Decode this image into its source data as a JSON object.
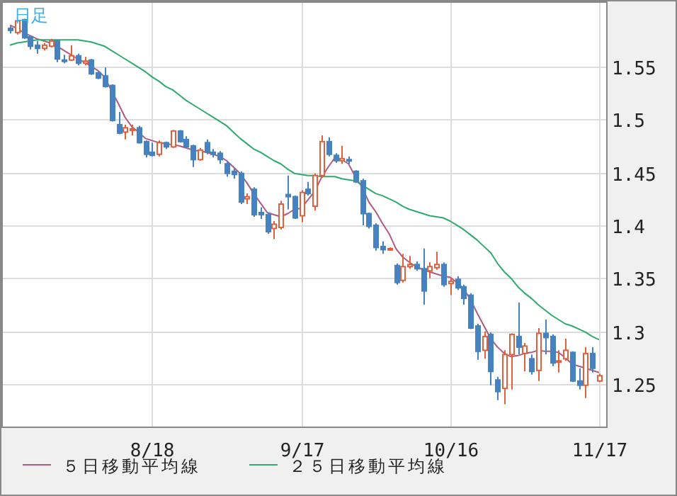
{
  "chart_data": {
    "type": "candlestick",
    "annotations": [
      "日足"
    ],
    "categories": [
      null,
      null,
      null,
      null,
      null,
      null,
      null,
      null,
      null,
      null,
      null,
      null,
      null,
      null,
      null,
      null,
      null,
      null,
      null,
      null,
      null,
      "8/18",
      null,
      null,
      null,
      null,
      null,
      null,
      null,
      null,
      null,
      null,
      null,
      null,
      null,
      null,
      null,
      null,
      null,
      null,
      null,
      null,
      null,
      "9/17",
      null,
      null,
      null,
      null,
      null,
      null,
      null,
      null,
      null,
      null,
      null,
      null,
      null,
      null,
      null,
      null,
      null,
      null,
      null,
      null,
      null,
      "10/16",
      null,
      null,
      null,
      null,
      null,
      null,
      null,
      null,
      null,
      null,
      null,
      null,
      null,
      null,
      null,
      null,
      null,
      null,
      null,
      null,
      null,
      "11/17"
    ],
    "ohlc": [
      [
        1.586,
        1.588,
        1.581,
        1.584
      ],
      [
        1.582,
        1.594,
        1.58,
        1.593
      ],
      [
        1.594,
        1.595,
        1.576,
        1.577
      ],
      [
        1.578,
        1.579,
        1.566,
        1.569
      ],
      [
        1.57,
        1.574,
        1.562,
        1.567
      ],
      [
        1.567,
        1.572,
        1.565,
        1.57
      ],
      [
        1.569,
        1.576,
        1.568,
        1.574
      ],
      [
        1.574,
        1.575,
        1.554,
        1.557
      ],
      [
        1.556,
        1.561,
        1.553,
        1.555
      ],
      [
        1.556,
        1.57,
        1.555,
        1.56
      ],
      [
        1.56,
        1.562,
        1.551,
        1.553
      ],
      [
        1.553,
        1.559,
        1.551,
        1.555
      ],
      [
        1.556,
        1.557,
        1.542,
        1.543
      ],
      [
        1.544,
        1.545,
        1.538,
        1.539
      ],
      [
        1.541,
        1.549,
        1.53,
        1.531
      ],
      [
        1.532,
        1.533,
        1.498,
        1.499
      ],
      [
        1.495,
        1.507,
        1.486,
        1.487
      ],
      [
        1.488,
        1.495,
        1.481,
        1.492
      ],
      [
        1.49,
        1.495,
        1.485,
        1.491
      ],
      [
        1.492,
        1.494,
        1.477,
        1.478
      ],
      [
        1.479,
        1.48,
        1.464,
        1.467
      ],
      [
        1.469,
        1.478,
        1.465,
        1.466
      ],
      [
        1.467,
        1.48,
        1.465,
        1.478
      ],
      [
        1.478,
        1.479,
        1.472,
        1.474
      ],
      [
        1.474,
        1.49,
        1.473,
        1.489
      ],
      [
        1.489,
        1.49,
        1.478,
        1.479
      ],
      [
        1.481,
        1.484,
        1.473,
        1.474
      ],
      [
        1.475,
        1.476,
        1.455,
        1.462
      ],
      [
        1.462,
        1.473,
        1.461,
        1.471
      ],
      [
        1.478,
        1.481,
        1.467,
        1.469
      ],
      [
        1.469,
        1.472,
        1.464,
        1.467
      ],
      [
        1.468,
        1.47,
        1.458,
        1.462
      ],
      [
        1.458,
        1.46,
        1.446,
        1.449
      ],
      [
        1.451,
        1.454,
        1.444,
        1.448
      ],
      [
        1.449,
        1.451,
        1.42,
        1.422
      ],
      [
        1.425,
        1.43,
        1.42,
        1.427
      ],
      [
        1.434,
        1.436,
        1.408,
        1.41
      ],
      [
        1.412,
        1.417,
        1.406,
        1.41
      ],
      [
        1.41,
        1.412,
        1.392,
        1.394
      ],
      [
        1.397,
        1.404,
        1.387,
        1.401
      ],
      [
        1.398,
        1.423,
        1.396,
        1.42
      ],
      [
        1.429,
        1.447,
        1.415,
        1.427
      ],
      [
        1.427,
        1.428,
        1.406,
        1.407
      ],
      [
        1.409,
        1.433,
        1.403,
        1.431
      ],
      [
        1.434,
        1.441,
        1.428,
        1.43
      ],
      [
        1.418,
        1.449,
        1.414,
        1.447
      ],
      [
        1.447,
        1.485,
        1.445,
        1.479
      ],
      [
        1.479,
        1.483,
        1.465,
        1.467
      ],
      [
        1.466,
        1.468,
        1.459,
        1.461
      ],
      [
        1.461,
        1.475,
        1.458,
        1.463
      ],
      [
        1.462,
        1.465,
        1.458,
        1.461
      ],
      [
        1.451,
        1.452,
        1.44,
        1.441
      ],
      [
        1.442,
        1.444,
        1.4,
        1.411
      ],
      [
        1.411,
        1.412,
        1.397,
        1.399
      ],
      [
        1.4,
        1.402,
        1.376,
        1.379
      ],
      [
        1.38,
        1.385,
        1.373,
        1.377
      ],
      [
        1.377,
        1.379,
        1.376,
        1.378
      ],
      [
        1.362,
        1.364,
        1.344,
        1.346
      ],
      [
        1.348,
        1.373,
        1.346,
        1.361
      ],
      [
        1.361,
        1.371,
        1.359,
        1.363
      ],
      [
        1.363,
        1.366,
        1.357,
        1.359
      ],
      [
        1.359,
        1.378,
        1.325,
        1.338
      ],
      [
        1.357,
        1.365,
        1.35,
        1.361
      ],
      [
        1.36,
        1.375,
        1.358,
        1.363
      ],
      [
        1.363,
        1.365,
        1.342,
        1.344
      ],
      [
        1.345,
        1.351,
        1.334,
        1.347
      ],
      [
        1.349,
        1.352,
        1.339,
        1.341
      ],
      [
        1.342,
        1.344,
        1.325,
        1.331
      ],
      [
        1.334,
        1.336,
        1.302,
        1.303
      ],
      [
        1.305,
        1.307,
        1.273,
        1.281
      ],
      [
        1.282,
        1.3,
        1.274,
        1.295
      ],
      [
        1.297,
        1.299,
        1.249,
        1.262
      ],
      [
        1.254,
        1.257,
        1.235,
        1.243
      ],
      [
        1.246,
        1.282,
        1.231,
        1.278
      ],
      [
        1.278,
        1.298,
        1.245,
        1.297
      ],
      [
        1.295,
        1.327,
        1.278,
        1.285
      ],
      [
        1.279,
        1.289,
        1.262,
        1.286
      ],
      [
        1.274,
        1.278,
        1.259,
        1.262
      ],
      [
        1.263,
        1.303,
        1.253,
        1.298
      ],
      [
        1.298,
        1.311,
        1.278,
        1.294
      ],
      [
        1.295,
        1.297,
        1.267,
        1.27
      ],
      [
        1.271,
        1.282,
        1.261,
        1.272
      ],
      [
        1.274,
        1.293,
        1.272,
        1.282
      ],
      [
        1.28,
        1.281,
        1.252,
        1.253
      ],
      [
        1.253,
        1.265,
        1.245,
        1.249
      ],
      [
        1.249,
        1.285,
        1.237,
        1.279
      ],
      [
        1.279,
        1.285,
        1.261,
        1.265
      ],
      [
        1.253,
        1.26,
        1.252,
        1.258
      ]
    ],
    "colors": [
      "#4682c0",
      "#e0603c",
      "#4682c0",
      "#4682c0",
      "#4682c0",
      "#e0603c",
      "#e0603c",
      "#4682c0",
      "#4682c0",
      "#e0603c",
      "#4682c0",
      "#e0603c",
      "#4682c0",
      "#4682c0",
      "#4682c0",
      "#4682c0",
      "#4682c0",
      "#e0603c",
      "#e0603c",
      "#4682c0",
      "#4682c0",
      "#4682c0",
      "#e0603c",
      "#4682c0",
      "#e0603c",
      "#4682c0",
      "#4682c0",
      "#4682c0",
      "#e0603c",
      "#4682c0",
      "#4682c0",
      "#4682c0",
      "#4682c0",
      "#4682c0",
      "#4682c0",
      "#e0603c",
      "#4682c0",
      "#4682c0",
      "#4682c0",
      "#e0603c",
      "#e0603c",
      "#4682c0",
      "#4682c0",
      "#e0603c",
      "#4682c0",
      "#e0603c",
      "#e0603c",
      "#4682c0",
      "#4682c0",
      "#e0603c",
      "#4682c0",
      "#4682c0",
      "#4682c0",
      "#4682c0",
      "#4682c0",
      "#4682c0",
      "#e0603c",
      "#4682c0",
      "#e0603c",
      "#e0603c",
      "#4682c0",
      "#4682c0",
      "#e0603c",
      "#e0603c",
      "#4682c0",
      "#e0603c",
      "#4682c0",
      "#4682c0",
      "#4682c0",
      "#4682c0",
      "#e0603c",
      "#4682c0",
      "#4682c0",
      "#e0603c",
      "#e0603c",
      "#4682c0",
      "#e0603c",
      "#4682c0",
      "#e0603c",
      "#4682c0",
      "#4682c0",
      "#e0603c",
      "#e0603c",
      "#4682c0",
      "#4682c0",
      "#e0603c",
      "#4682c0",
      "#e0603c"
    ],
    "series": [
      {
        "name": "５日移動平均線",
        "type": "line",
        "color": "#b05a80",
        "values": [
          1.589,
          1.586,
          1.582,
          1.579,
          1.576,
          1.574,
          1.572,
          1.569,
          1.565,
          1.561,
          1.557,
          1.554,
          1.55,
          1.546,
          1.54,
          1.527,
          1.515,
          1.502,
          1.493,
          1.488,
          1.482,
          1.48,
          1.478,
          1.477,
          1.476,
          1.475,
          1.473,
          1.471,
          1.47,
          1.469,
          1.467,
          1.465,
          1.461,
          1.455,
          1.449,
          1.44,
          1.43,
          1.421,
          1.412,
          1.41,
          1.408,
          1.411,
          1.415,
          1.416,
          1.424,
          1.432,
          1.445,
          1.455,
          1.464,
          1.462,
          1.458,
          1.446,
          1.436,
          1.422,
          1.413,
          1.402,
          1.392,
          1.378,
          1.37,
          1.365,
          1.361,
          1.358,
          1.356,
          1.354,
          1.352,
          1.351,
          1.346,
          1.34,
          1.33,
          1.317,
          1.305,
          1.293,
          1.285,
          1.279,
          1.276,
          1.277,
          1.279,
          1.28,
          1.282,
          1.281,
          1.281,
          1.28,
          1.275,
          1.269,
          1.267,
          1.265,
          1.263,
          1.261
        ]
      },
      {
        "name": "２５日移動平均線",
        "type": "line",
        "color": "#2eaa6e",
        "values": [
          1.57,
          1.572,
          1.573,
          1.574,
          1.575,
          1.575,
          1.575,
          1.575,
          1.575,
          1.575,
          1.575,
          1.574,
          1.573,
          1.571,
          1.569,
          1.565,
          1.561,
          1.557,
          1.553,
          1.549,
          1.545,
          1.54,
          1.536,
          1.531,
          1.528,
          1.523,
          1.518,
          1.514,
          1.51,
          1.506,
          1.502,
          1.498,
          1.494,
          1.488,
          1.482,
          1.477,
          1.472,
          1.469,
          1.465,
          1.461,
          1.458,
          1.453,
          1.449,
          1.448,
          1.447,
          1.447,
          1.446,
          1.446,
          1.446,
          1.444,
          1.443,
          1.442,
          1.438,
          1.434,
          1.43,
          1.428,
          1.425,
          1.422,
          1.418,
          1.415,
          1.413,
          1.411,
          1.409,
          1.408,
          1.407,
          1.404,
          1.4,
          1.396,
          1.391,
          1.386,
          1.38,
          1.374,
          1.364,
          1.356,
          1.35,
          1.342,
          1.336,
          1.331,
          1.325,
          1.32,
          1.315,
          1.311,
          1.307,
          1.305,
          1.302,
          1.299,
          1.295,
          1.292
        ]
      }
    ],
    "ylim": [
      1.21,
      1.61
    ],
    "yticks": [
      1.25,
      1.3,
      1.35,
      1.4,
      1.45,
      1.5,
      1.55
    ],
    "grid": true,
    "legend": "bottom",
    "marker": "none"
  }
}
